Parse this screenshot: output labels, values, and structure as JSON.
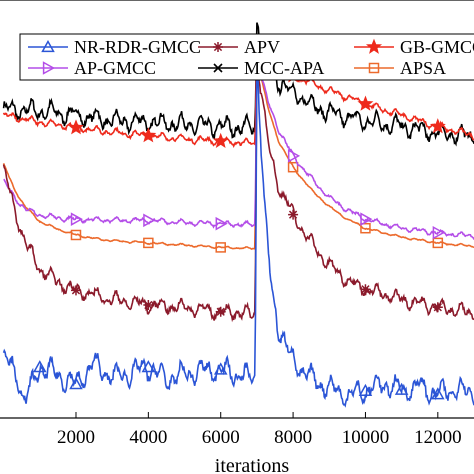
{
  "chart_data": {
    "type": "line",
    "xlabel": "iterations",
    "ylabel": "",
    "title": "",
    "xlim": [
      -100,
      13000
    ],
    "ylim": [
      -24,
      13
    ],
    "x_ticks": [
      2000,
      4000,
      6000,
      8000,
      10000,
      12000
    ],
    "x_tick_labels": [
      "2000",
      "4000",
      "6000",
      "8000",
      "10000",
      "12000"
    ],
    "grid": false,
    "legend_position": "top",
    "change_point": 7000,
    "series": [
      {
        "name": "NR-RDR-GMCC",
        "color": "#2b55d6",
        "marker": "triangle",
        "points": [
          [
            0,
            -18.5
          ],
          [
            300,
            -19.8
          ],
          [
            600,
            -22.5
          ],
          [
            1000,
            -19.5
          ],
          [
            1500,
            -20.2
          ],
          [
            2000,
            -21.0
          ],
          [
            2500,
            -19.2
          ],
          [
            3000,
            -20.4
          ],
          [
            3500,
            -20.0
          ],
          [
            4000,
            -19.5
          ],
          [
            4500,
            -20.6
          ],
          [
            5000,
            -20.1
          ],
          [
            5500,
            -19.8
          ],
          [
            6000,
            -19.7
          ],
          [
            6500,
            -20.2
          ],
          [
            6950,
            -20.5
          ],
          [
            7000,
            8.0
          ],
          [
            7200,
            -5.0
          ],
          [
            7400,
            -12.5
          ],
          [
            7600,
            -16.0
          ],
          [
            8000,
            -19.0
          ],
          [
            8500,
            -20.5
          ],
          [
            9000,
            -21.3
          ],
          [
            9500,
            -22.0
          ],
          [
            10000,
            -21.6
          ],
          [
            10500,
            -21.0
          ],
          [
            11000,
            -21.5
          ],
          [
            11500,
            -21.2
          ],
          [
            12000,
            -21.9
          ],
          [
            12500,
            -21.4
          ],
          [
            13000,
            -21.7
          ]
        ],
        "marker_x": [
          1000,
          2000,
          4000,
          6000,
          10000,
          11000,
          12000
        ]
      },
      {
        "name": "APV",
        "color": "#8b1a2b",
        "marker": "asterisk",
        "points": [
          [
            0,
            -2.0
          ],
          [
            300,
            -5.5
          ],
          [
            600,
            -8.5
          ],
          [
            1000,
            -10.8
          ],
          [
            1500,
            -12.0
          ],
          [
            2000,
            -12.7
          ],
          [
            3000,
            -13.5
          ],
          [
            4000,
            -14.0
          ],
          [
            5000,
            -14.2
          ],
          [
            6000,
            -14.6
          ],
          [
            6950,
            -14.8
          ],
          [
            7000,
            8.0
          ],
          [
            7300,
            0.5
          ],
          [
            7600,
            -3.5
          ],
          [
            8000,
            -6.0
          ],
          [
            8500,
            -8.5
          ],
          [
            9000,
            -10.5
          ],
          [
            9500,
            -11.8
          ],
          [
            10000,
            -12.6
          ],
          [
            11000,
            -13.5
          ],
          [
            12000,
            -14.2
          ],
          [
            13000,
            -14.7
          ]
        ],
        "marker_x": [
          2000,
          4000,
          6000,
          8000,
          10000,
          12000
        ]
      },
      {
        "name": "GB-GMCC",
        "color": "#ee2a1c",
        "marker": "star",
        "points": [
          [
            0,
            2.8
          ],
          [
            1000,
            2.2
          ],
          [
            2000,
            1.7
          ],
          [
            3000,
            1.3
          ],
          [
            4000,
            1.0
          ],
          [
            5000,
            0.7
          ],
          [
            6000,
            0.5
          ],
          [
            6950,
            0.3
          ],
          [
            7000,
            9.5
          ],
          [
            7300,
            7.5
          ],
          [
            8000,
            6.3
          ],
          [
            9000,
            5.0
          ],
          [
            10000,
            3.8
          ],
          [
            11000,
            2.8
          ],
          [
            12000,
            1.8
          ],
          [
            13000,
            1.0
          ]
        ],
        "marker_x": [
          2000,
          4000,
          6000,
          8000,
          10000,
          12000
        ]
      },
      {
        "name": "AP-GMCC",
        "color": "#b44ee8",
        "marker": "triangle-right",
        "points": [
          [
            0,
            -3.0
          ],
          [
            300,
            -4.5
          ],
          [
            600,
            -5.5
          ],
          [
            1000,
            -6.0
          ],
          [
            1500,
            -6.3
          ],
          [
            2000,
            -6.4
          ],
          [
            3000,
            -6.5
          ],
          [
            4000,
            -6.5
          ],
          [
            5000,
            -6.7
          ],
          [
            6000,
            -6.8
          ],
          [
            6950,
            -6.9
          ],
          [
            7000,
            8.0
          ],
          [
            7300,
            4.0
          ],
          [
            7600,
            1.5
          ],
          [
            8000,
            -0.8
          ],
          [
            8500,
            -2.8
          ],
          [
            9000,
            -4.5
          ],
          [
            9500,
            -5.6
          ],
          [
            10000,
            -6.4
          ],
          [
            11000,
            -7.2
          ],
          [
            12000,
            -7.6
          ],
          [
            13000,
            -7.9
          ]
        ],
        "marker_x": [
          2000,
          4000,
          6000,
          8000,
          10000,
          12000
        ]
      },
      {
        "name": "MCC-APA",
        "color": "#000000",
        "marker": "x",
        "points": [
          [
            0,
            3.3
          ],
          [
            1000,
            3.2
          ],
          [
            2000,
            2.8
          ],
          [
            3000,
            2.3
          ],
          [
            4000,
            2.2
          ],
          [
            5000,
            2.0
          ],
          [
            6000,
            1.8
          ],
          [
            6950,
            1.7
          ],
          [
            7000,
            11.0
          ],
          [
            7300,
            8.0
          ],
          [
            7600,
            5.8
          ],
          [
            8000,
            4.8
          ],
          [
            8500,
            3.8
          ],
          [
            9000,
            3.0
          ],
          [
            10000,
            2.3
          ],
          [
            11000,
            1.8
          ],
          [
            12000,
            1.2
          ],
          [
            13000,
            1.0
          ]
        ],
        "marker_x": []
      },
      {
        "name": "APSA",
        "color": "#ec6a2c",
        "marker": "square",
        "points": [
          [
            0,
            -1.5
          ],
          [
            300,
            -3.8
          ],
          [
            600,
            -5.3
          ],
          [
            1000,
            -6.6
          ],
          [
            1500,
            -7.3
          ],
          [
            2000,
            -7.8
          ],
          [
            2500,
            -8.1
          ],
          [
            3000,
            -8.3
          ],
          [
            4000,
            -8.5
          ],
          [
            5000,
            -8.7
          ],
          [
            6000,
            -8.9
          ],
          [
            6950,
            -9.0
          ],
          [
            7000,
            8.0
          ],
          [
            7300,
            3.5
          ],
          [
            7600,
            0.5
          ],
          [
            8000,
            -1.8
          ],
          [
            8500,
            -3.8
          ],
          [
            9000,
            -5.3
          ],
          [
            9500,
            -6.4
          ],
          [
            10000,
            -7.2
          ],
          [
            11000,
            -8.0
          ],
          [
            12000,
            -8.5
          ],
          [
            13000,
            -8.8
          ]
        ],
        "marker_x": [
          2000,
          4000,
          6000,
          8000,
          10000,
          12000
        ]
      }
    ]
  }
}
